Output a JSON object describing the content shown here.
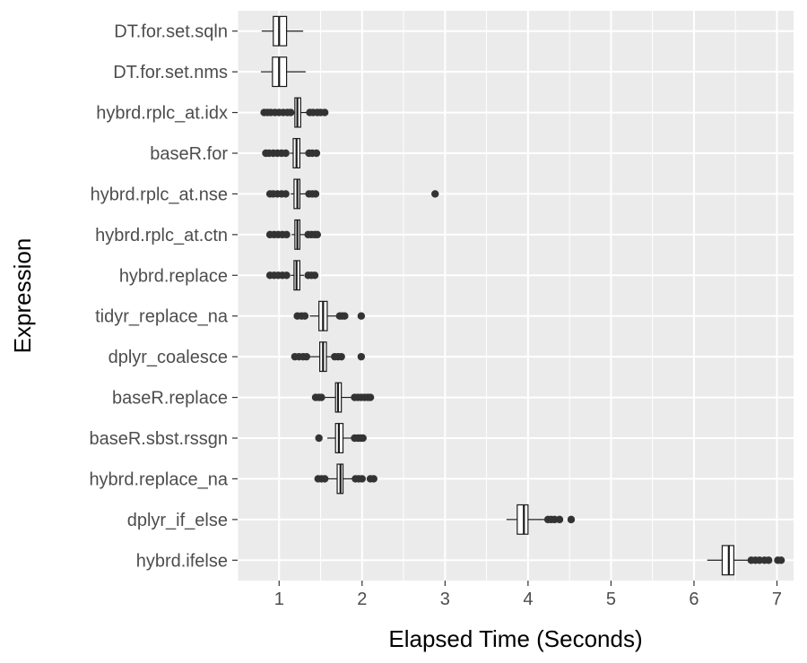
{
  "chart_data": {
    "type": "boxplot",
    "orientation": "horizontal",
    "title": "",
    "xlabel": "Elapsed Time (Seconds)",
    "ylabel": "Expression",
    "xlim": [
      0.5,
      7.2
    ],
    "xticks": [
      1,
      2,
      3,
      4,
      5,
      6,
      7
    ],
    "grid": true,
    "legend": "none",
    "colors": {
      "panel_background": "#ebebeb",
      "grid": "#ffffff",
      "box_fill": "#ffffff",
      "box_line": "#1a1a1a",
      "outlier": "#333333"
    },
    "categories": [
      "DT.for.set.sqln",
      "DT.for.set.nms",
      "hybrd.rplc_at.idx",
      "baseR.for",
      "hybrd.rplc_at.nse",
      "hybrd.rplc_at.ctn",
      "hybrd.replace",
      "tidyr_replace_na",
      "dplyr_coalesce",
      "baseR.replace",
      "baseR.sbst.rssgn",
      "hybrd.replace_na",
      "dplyr_if_else",
      "hybrd.ifelse"
    ],
    "series": [
      {
        "category": "DT.for.set.sqln",
        "whisker_low": 0.79,
        "q1": 0.93,
        "median": 1.0,
        "q3": 1.09,
        "whisker_high": 1.29,
        "outliers": []
      },
      {
        "category": "DT.for.set.nms",
        "whisker_low": 0.78,
        "q1": 0.92,
        "median": 1.0,
        "q3": 1.09,
        "whisker_high": 1.32,
        "outliers": []
      },
      {
        "category": "hybrd.rplc_at.idx",
        "whisker_low": 1.17,
        "q1": 1.19,
        "median": 1.22,
        "q3": 1.26,
        "whisker_high": 1.33,
        "outliers": [
          0.82,
          0.86,
          0.9,
          0.95,
          1.0,
          1.05,
          1.1,
          1.14,
          1.37,
          1.41,
          1.46,
          1.5,
          1.55
        ]
      },
      {
        "category": "baseR.for",
        "whisker_low": 1.13,
        "q1": 1.17,
        "median": 1.21,
        "q3": 1.25,
        "whisker_high": 1.32,
        "outliers": [
          0.84,
          0.88,
          0.93,
          0.98,
          1.03,
          1.08,
          1.36,
          1.4,
          1.45
        ]
      },
      {
        "category": "hybrd.rplc_at.nse",
        "whisker_low": 1.14,
        "q1": 1.18,
        "median": 1.22,
        "q3": 1.25,
        "whisker_high": 1.32,
        "outliers": [
          0.89,
          0.93,
          0.98,
          1.03,
          1.08,
          1.36,
          1.4,
          1.44,
          2.88
        ]
      },
      {
        "category": "hybrd.rplc_at.ctn",
        "whisker_low": 1.15,
        "q1": 1.19,
        "median": 1.22,
        "q3": 1.25,
        "whisker_high": 1.31,
        "outliers": [
          0.89,
          0.94,
          0.99,
          1.04,
          1.09,
          1.35,
          1.39,
          1.43,
          1.46
        ]
      },
      {
        "category": "hybrd.replace",
        "whisker_low": 1.14,
        "q1": 1.18,
        "median": 1.21,
        "q3": 1.25,
        "whisker_high": 1.3,
        "outliers": [
          0.89,
          0.94,
          0.99,
          1.04,
          1.09,
          1.35,
          1.39,
          1.43
        ]
      },
      {
        "category": "tidyr_replace_na",
        "whisker_low": 1.37,
        "q1": 1.48,
        "median": 1.53,
        "q3": 1.58,
        "whisker_high": 1.7,
        "outliers": [
          1.22,
          1.27,
          1.31,
          1.73,
          1.76,
          1.79,
          1.99
        ]
      },
      {
        "category": "dplyr_coalesce",
        "whisker_low": 1.36,
        "q1": 1.49,
        "median": 1.53,
        "q3": 1.57,
        "whisker_high": 1.65,
        "outliers": [
          1.19,
          1.24,
          1.29,
          1.33,
          1.67,
          1.71,
          1.75,
          1.99
        ]
      },
      {
        "category": "baseR.replace",
        "whisker_low": 1.55,
        "q1": 1.68,
        "median": 1.71,
        "q3": 1.75,
        "whisker_high": 1.88,
        "outliers": [
          1.44,
          1.48,
          1.51,
          1.91,
          1.95,
          1.99,
          2.03,
          2.07,
          2.1
        ]
      },
      {
        "category": "baseR.sbst.rssgn",
        "whisker_low": 1.58,
        "q1": 1.68,
        "median": 1.72,
        "q3": 1.77,
        "whisker_high": 1.87,
        "outliers": [
          1.48,
          1.91,
          1.95,
          1.98,
          2.01
        ]
      },
      {
        "category": "hybrd.replace_na",
        "whisker_low": 1.58,
        "q1": 1.7,
        "median": 1.74,
        "q3": 1.77,
        "whisker_high": 1.88,
        "outliers": [
          1.47,
          1.51,
          1.55,
          1.92,
          1.96,
          2.0,
          2.1,
          2.14
        ]
      },
      {
        "category": "dplyr_if_else",
        "whisker_low": 3.74,
        "q1": 3.87,
        "median": 3.95,
        "q3": 4.0,
        "whisker_high": 4.21,
        "outliers": [
          4.24,
          4.28,
          4.32,
          4.38,
          4.52
        ]
      },
      {
        "category": "hybrd.ifelse",
        "whisker_low": 6.16,
        "q1": 6.34,
        "median": 6.42,
        "q3": 6.48,
        "whisker_high": 6.65,
        "outliers": [
          6.69,
          6.74,
          6.79,
          6.85,
          6.9,
          7.01,
          7.05
        ]
      }
    ]
  }
}
